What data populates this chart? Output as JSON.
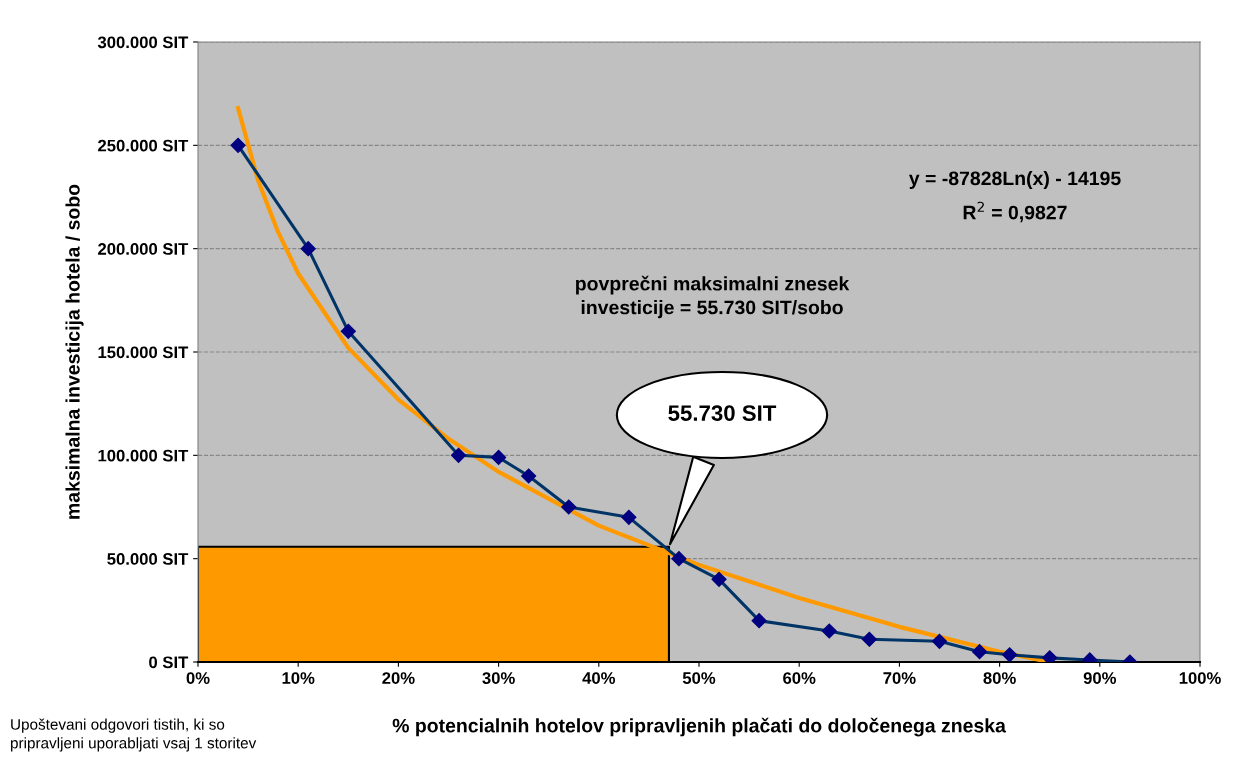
{
  "chart_data": {
    "type": "line",
    "xlabel": "% potencialnih hotelov pripravljenih plačati do določenega zneska",
    "ylabel": "maksimalna investicija hotela / sobo",
    "series": [
      {
        "type": "area",
        "color": "#ff9900",
        "x": [
          0,
          47
        ],
        "values": [
          55730,
          55730
        ]
      },
      {
        "color": "#003366",
        "marker": "diamond",
        "x": [
          4,
          11,
          15,
          26,
          30,
          33,
          37,
          43,
          48,
          52,
          56,
          63,
          67,
          74,
          78,
          81,
          85,
          89,
          93
        ],
        "values": [
          250000,
          200000,
          160000,
          100000,
          99000,
          90000,
          75000,
          70000,
          50000,
          40000,
          20000,
          15000,
          11000,
          10000,
          5000,
          3500,
          2000,
          1000,
          0
        ]
      },
      {
        "color": "#ff9900",
        "x": [
          4,
          6,
          8,
          10,
          15,
          20,
          25,
          30,
          40,
          50,
          60,
          70,
          80,
          85
        ],
        "values": [
          268000,
          233000,
          208000,
          188000,
          152000,
          127000,
          108000,
          92000,
          66000,
          47000,
          31000,
          17000,
          5000,
          0
        ]
      }
    ],
    "xlim": [
      0,
      100
    ],
    "xticks": [
      {
        "value": 0,
        "label": "0%"
      },
      {
        "value": 10,
        "label": "10%"
      },
      {
        "value": 20,
        "label": "20%"
      },
      {
        "value": 30,
        "label": "30%"
      },
      {
        "value": 40,
        "label": "40%"
      },
      {
        "value": 50,
        "label": "50%"
      },
      {
        "value": 60,
        "label": "60%"
      },
      {
        "value": 70,
        "label": "70%"
      },
      {
        "value": 80,
        "label": "80%"
      },
      {
        "value": 90,
        "label": "90%"
      },
      {
        "value": 100,
        "label": "100%"
      }
    ],
    "ylim": [
      0,
      300000
    ],
    "yticks": [
      {
        "value": 0,
        "label": "0 SIT"
      },
      {
        "value": 50000,
        "label": "50.000 SIT"
      },
      {
        "value": 100000,
        "label": "100.000 SIT"
      },
      {
        "value": 150000,
        "label": "150.000 SIT"
      },
      {
        "value": 200000,
        "label": "200.000 SIT"
      },
      {
        "value": 250000,
        "label": "250.000 SIT"
      },
      {
        "value": 300000,
        "label": "300.000 SIT"
      }
    ],
    "grid": "y",
    "annotations": [
      "y = -87828Ln(x) - 14195",
      "R$^{2}$ = 0,9827",
      "povprečni maksimalni znesek\ninvesticije = 55.730 SIT/sobo",
      "55.730 SIT",
      "Upoštevani odgovori tistih, ki so\npripravljeni uporabljati vsaj 1 storitev"
    ]
  }
}
